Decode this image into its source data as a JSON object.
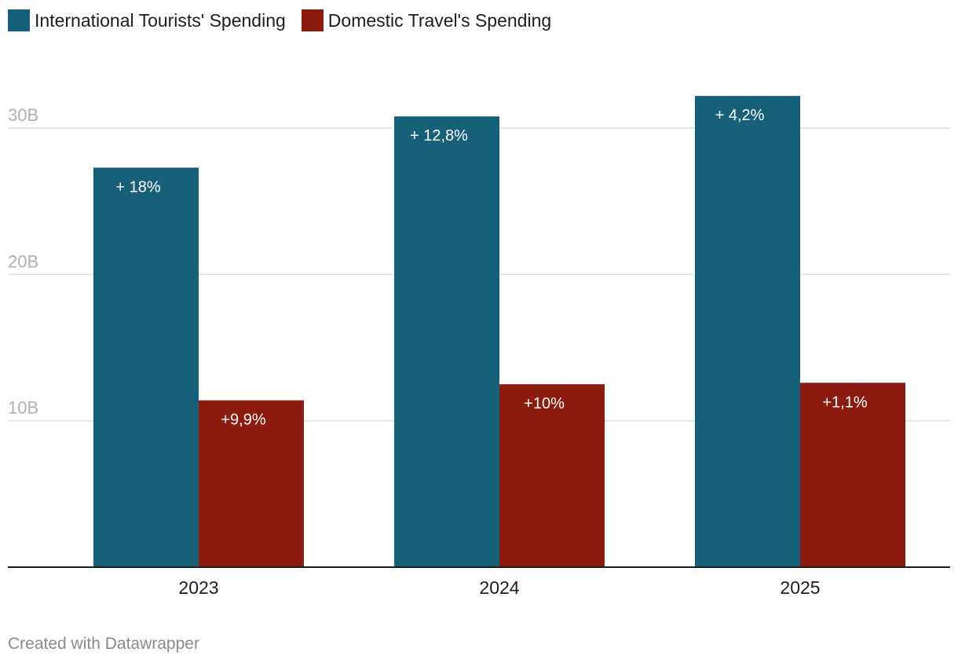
{
  "colors": {
    "international": "#17607a",
    "domestic": "#8c1c0f",
    "grid": "#e0e0e0",
    "axis": "#1d1d1d",
    "tick_label": "#b0b0b0",
    "bar_label": "#ffffff"
  },
  "legend": {
    "international_label": "International Tourists' Spending",
    "domestic_label": "Domestic Travel's Spending"
  },
  "footer": {
    "credit": "Created with Datawrapper"
  },
  "chart_data": {
    "type": "bar",
    "categories": [
      "2023",
      "2024",
      "2025"
    ],
    "series": [
      {
        "name": "International Tourists' Spending",
        "values": [
          27.3,
          30.8,
          32.2
        ],
        "labels": [
          "+ 18%",
          "+ 12,8%",
          "+ 4,2%"
        ]
      },
      {
        "name": "Domestic Travel's Spending",
        "values": [
          11.4,
          12.5,
          12.6
        ],
        "labels": [
          "+9,9%",
          "+10%",
          "+1,1%"
        ]
      }
    ],
    "yticks": [
      10,
      20,
      30
    ],
    "ytick_labels": [
      "10B",
      "20B",
      "30B"
    ],
    "ylim": [
      0,
      34
    ],
    "grid": true,
    "legend_position": "top-left"
  }
}
